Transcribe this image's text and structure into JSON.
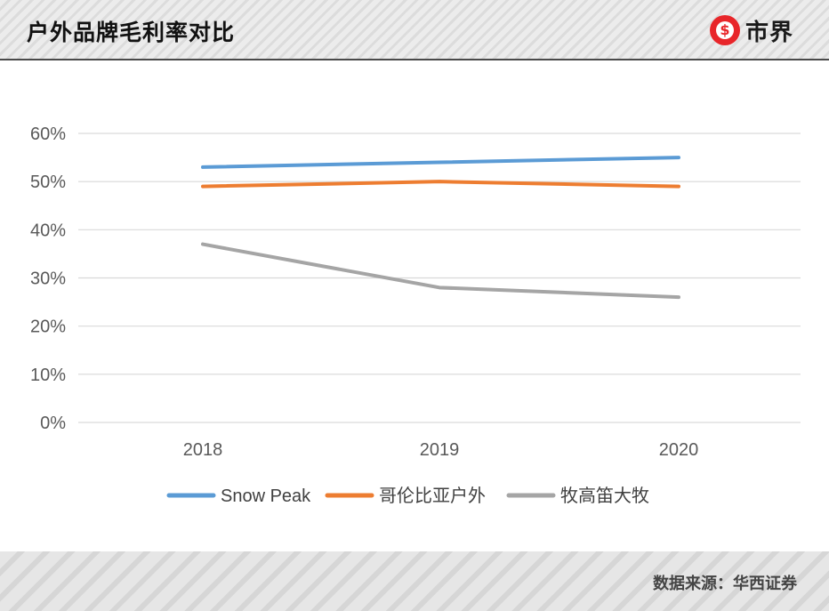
{
  "header": {
    "title": "户外品牌毛利率对比",
    "logo_text": "市界",
    "logo_icon_glyph": "$"
  },
  "footer": {
    "source": "数据来源：华西证券"
  },
  "chart_data": {
    "type": "line",
    "title": "户外品牌毛利率对比",
    "xlabel": "",
    "ylabel": "",
    "categories": [
      "2018",
      "2019",
      "2020"
    ],
    "ylim": [
      0,
      60
    ],
    "yticks": [
      "0%",
      "10%",
      "20%",
      "30%",
      "40%",
      "50%",
      "60%"
    ],
    "grid": true,
    "legend_position": "bottom",
    "series": [
      {
        "name": "Snow Peak",
        "values": [
          53,
          54,
          55
        ],
        "color": "#5b9bd5"
      },
      {
        "name": "哥伦比亚户外",
        "values": [
          49,
          50,
          49
        ],
        "color": "#ed7d31"
      },
      {
        "name": "牧高笛大牧",
        "values": [
          37,
          28,
          26
        ],
        "color": "#a5a5a5"
      }
    ]
  }
}
